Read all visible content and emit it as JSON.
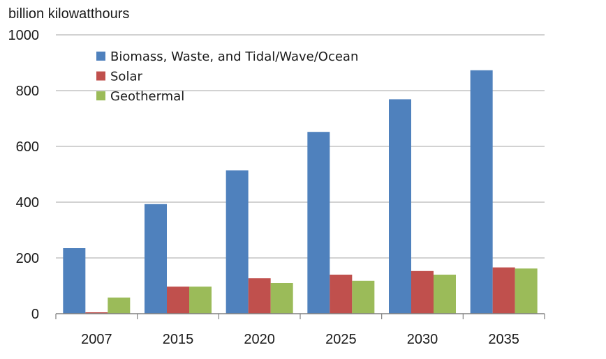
{
  "chart_data": {
    "type": "bar",
    "title": "",
    "ylabel": "billion kilowatthours",
    "xlabel": "",
    "categories": [
      "2007",
      "2015",
      "2020",
      "2025",
      "2030",
      "2035"
    ],
    "ylim": [
      0,
      1000
    ],
    "yticks": [
      0,
      200,
      400,
      600,
      800,
      1000
    ],
    "grid": true,
    "legend_position": "top-left",
    "series": [
      {
        "name": "Biomass, Waste, and Tidal/Wave/Ocean",
        "color": "#4F81BD",
        "values": [
          235,
          393,
          514,
          652,
          769,
          873
        ]
      },
      {
        "name": "Solar",
        "color": "#C0504D",
        "values": [
          5,
          97,
          127,
          140,
          153,
          166
        ]
      },
      {
        "name": "Geothermal",
        "color": "#9BBB59",
        "values": [
          58,
          97,
          110,
          118,
          140,
          162
        ]
      }
    ]
  }
}
